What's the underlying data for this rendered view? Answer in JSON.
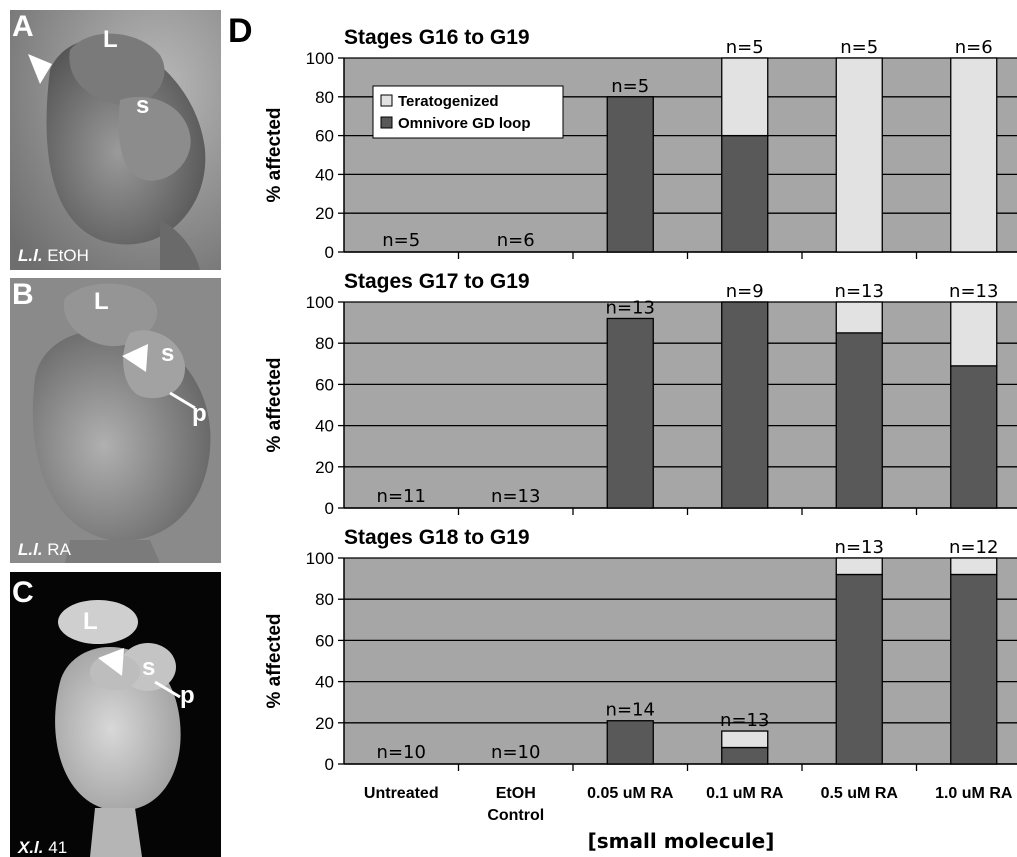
{
  "panels": [
    {
      "id": "A",
      "labels": [
        "L",
        "s"
      ],
      "caption_species": "L.l.",
      "caption_treatment": "EtOH"
    },
    {
      "id": "B",
      "labels": [
        "L",
        "s",
        "p"
      ],
      "caption_species": "L.l.",
      "caption_treatment": "RA"
    },
    {
      "id": "C",
      "labels": [
        "L",
        "s",
        "p"
      ],
      "caption_species": "X.l.",
      "caption_treatment": "41"
    }
  ],
  "figure_label": "D",
  "colors": {
    "plot_bg": "#a6a6a6",
    "omnivore": "#595959",
    "teratogenized": "#e2e2e2"
  },
  "chart_data": [
    {
      "type": "bar",
      "stacked": true,
      "title": "Stages G16 to G19",
      "ylabel": "% affected",
      "ylim": [
        0,
        100
      ],
      "yticks": [
        "0",
        "20",
        "40",
        "60",
        "80",
        "100"
      ],
      "grid": true,
      "legend": "top-left",
      "categories": [
        "Untreated",
        "EtOH Control",
        "0.05 uM RA",
        "0.1 uM RA",
        "0.5 uM RA",
        "1.0 uM RA"
      ],
      "series": [
        {
          "name": "Omnivore GD loop",
          "values": [
            0,
            0,
            80,
            60,
            0,
            0
          ]
        },
        {
          "name": "Teratogenized",
          "values": [
            0,
            0,
            0,
            40,
            100,
            100
          ]
        }
      ],
      "n_labels": [
        "n=5",
        "n=6",
        "n=5",
        "n=5",
        "n=5",
        "n=6"
      ]
    },
    {
      "type": "bar",
      "stacked": true,
      "title": "Stages G17 to G19",
      "ylabel": "% affected",
      "ylim": [
        0,
        100
      ],
      "yticks": [
        "0",
        "20",
        "40",
        "60",
        "80",
        "100"
      ],
      "grid": true,
      "categories": [
        "Untreated",
        "EtOH Control",
        "0.05 uM RA",
        "0.1 uM RA",
        "0.5 uM RA",
        "1.0 uM RA"
      ],
      "series": [
        {
          "name": "Omnivore GD loop",
          "values": [
            0,
            0,
            92,
            100,
            85,
            69
          ]
        },
        {
          "name": "Teratogenized",
          "values": [
            0,
            0,
            0,
            0,
            15,
            31
          ]
        }
      ],
      "n_labels": [
        "n=11",
        "n=13",
        "n=13",
        "n=9",
        "n=13",
        "n=13"
      ]
    },
    {
      "type": "bar",
      "stacked": true,
      "title": "Stages G18 to G19",
      "ylabel": "% affected",
      "ylim": [
        0,
        100
      ],
      "yticks": [
        "0",
        "20",
        "40",
        "60",
        "80",
        "100"
      ],
      "grid": true,
      "xlabel": "[small molecule]",
      "categories": [
        "Untreated",
        "EtOH Control",
        "0.05 uM RA",
        "0.1 uM RA",
        "0.5 uM RA",
        "1.0 uM RA"
      ],
      "series": [
        {
          "name": "Omnivore GD loop",
          "values": [
            0,
            0,
            21,
            8,
            92,
            92
          ]
        },
        {
          "name": "Teratogenized",
          "values": [
            0,
            0,
            0,
            8,
            8,
            8
          ]
        }
      ],
      "n_labels": [
        "n=10",
        "n=10",
        "n=14",
        "n=13",
        "n=13",
        "n=12"
      ]
    }
  ],
  "x_tick_lines": [
    [
      "Untreated"
    ],
    [
      "EtOH",
      "Control"
    ],
    [
      "0.05 uM RA"
    ],
    [
      "0.1 uM RA"
    ],
    [
      "0.5 uM RA"
    ],
    [
      "1.0 uM RA"
    ]
  ]
}
